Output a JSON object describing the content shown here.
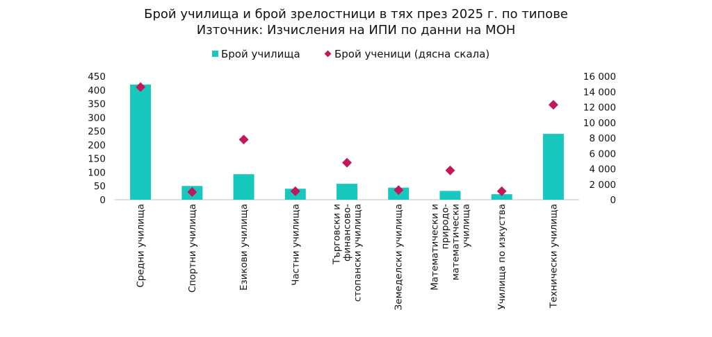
{
  "chart_data": {
    "type": "bar",
    "title_line1": "Брой училища и брой зрелостници в тях през 2025 г. по типове",
    "title_line2": "Източник: Изчисления на ИПИ по данни на МОН",
    "categories": [
      [
        "Средни училища"
      ],
      [
        "Спортни училища"
      ],
      [
        "Езикови училища"
      ],
      [
        "Частни училища"
      ],
      [
        "Търговски и",
        "финансово-",
        "стопански училища"
      ],
      [
        "Земеделски училища"
      ],
      [
        "Математически и",
        "природо-",
        "математически",
        "училища"
      ],
      [
        "Училища по изкуства"
      ],
      [
        "Технически училища"
      ]
    ],
    "series": [
      {
        "name": "Брой училища",
        "kind": "bar",
        "axis": "left",
        "color": "#18c8be",
        "values": [
          420,
          50,
          93,
          40,
          58,
          44,
          32,
          20,
          240
        ]
      },
      {
        "name": "Брой ученици (дясна скала)",
        "kind": "marker",
        "axis": "right",
        "color": "#c2185b",
        "values": [
          14600,
          1000,
          7800,
          1100,
          4800,
          1250,
          3800,
          1100,
          12300
        ]
      }
    ],
    "y_left": {
      "min": 0,
      "max": 450,
      "ticks": [
        0,
        50,
        100,
        150,
        200,
        250,
        300,
        350,
        400,
        450
      ],
      "tick_labels": [
        "0",
        "50",
        "100",
        "150",
        "200",
        "250",
        "300",
        "350",
        "400",
        "450"
      ]
    },
    "y_right": {
      "min": 0,
      "max": 16000,
      "ticks": [
        0,
        2000,
        4000,
        6000,
        8000,
        10000,
        12000,
        14000,
        16000
      ],
      "tick_labels": [
        "0",
        "2 000",
        "4 000",
        "6 000",
        "8 000",
        "10 000",
        "12 000",
        "14 000",
        "16 000"
      ]
    },
    "legend_position": "top-center",
    "grid": false
  }
}
